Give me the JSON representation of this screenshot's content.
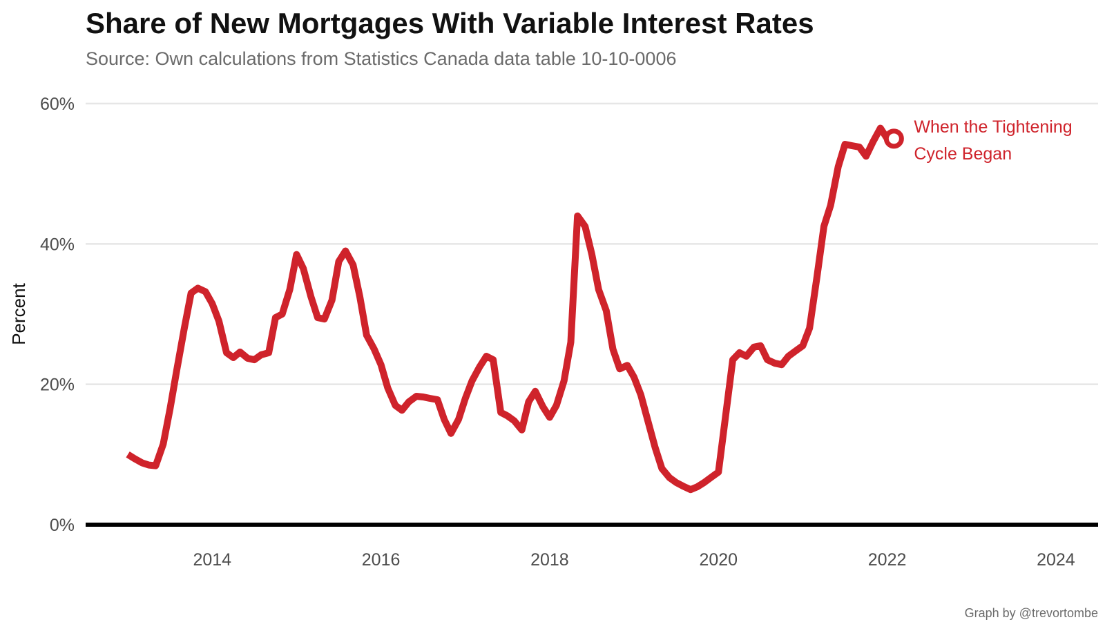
{
  "chart_data": {
    "type": "line",
    "title": "Share of New Mortgages With Variable Interest Rates",
    "subtitle": "Source: Own calculations from Statistics Canada data table 10-10-0006",
    "ylabel": "Percent",
    "xlabel": "",
    "caption": "Graph by @trevortombe",
    "xlim": [
      2012.5,
      2024.5
    ],
    "ylim": [
      0,
      60
    ],
    "x_ticks": [
      2014,
      2016,
      2018,
      2020,
      2022,
      2024
    ],
    "y_ticks": [
      0,
      20,
      40,
      60
    ],
    "y_tick_labels": [
      "0%",
      "20%",
      "40%",
      "60%"
    ],
    "grid": "horizontal",
    "series": [
      {
        "color": "#cf232b",
        "x": [
          2013.0,
          2013.08,
          2013.17,
          2013.25,
          2013.33,
          2013.42,
          2013.5,
          2013.58,
          2013.67,
          2013.75,
          2013.83,
          2013.92,
          2014.0,
          2014.08,
          2014.17,
          2014.25,
          2014.33,
          2014.42,
          2014.5,
          2014.58,
          2014.67,
          2014.75,
          2014.83,
          2014.92,
          2015.0,
          2015.08,
          2015.17,
          2015.25,
          2015.33,
          2015.42,
          2015.5,
          2015.58,
          2015.67,
          2015.75,
          2015.83,
          2015.92,
          2016.0,
          2016.08,
          2016.17,
          2016.25,
          2016.33,
          2016.42,
          2016.5,
          2016.58,
          2016.67,
          2016.75,
          2016.83,
          2016.92,
          2017.0,
          2017.08,
          2017.17,
          2017.25,
          2017.33,
          2017.42,
          2017.5,
          2017.58,
          2017.67,
          2017.75,
          2017.83,
          2017.92,
          2018.0,
          2018.08,
          2018.17,
          2018.25,
          2018.33,
          2018.42,
          2018.5,
          2018.58,
          2018.67,
          2018.75,
          2018.83,
          2018.92,
          2019.0,
          2019.08,
          2019.17,
          2019.25,
          2019.33,
          2019.42,
          2019.5,
          2019.58,
          2019.67,
          2019.75,
          2019.83,
          2019.92,
          2020.0,
          2020.08,
          2020.17,
          2020.25,
          2020.33,
          2020.42,
          2020.5,
          2020.58,
          2020.67,
          2020.75,
          2020.83,
          2020.92,
          2021.0,
          2021.08,
          2021.17,
          2021.25,
          2021.33,
          2021.42,
          2021.5,
          2021.58,
          2021.67,
          2021.75,
          2021.83,
          2021.92,
          2022.0
        ],
        "y": [
          10.0,
          9.4,
          8.8,
          8.5,
          8.4,
          11.5,
          16.5,
          22.0,
          28.0,
          33.0,
          33.7,
          33.2,
          31.5,
          29.0,
          24.5,
          23.8,
          24.6,
          23.7,
          23.5,
          24.2,
          24.5,
          29.5,
          30.0,
          33.5,
          38.5,
          36.5,
          32.5,
          29.5,
          29.3,
          32.0,
          37.5,
          39.0,
          37.0,
          32.5,
          27.0,
          25.0,
          22.8,
          19.5,
          17.0,
          16.3,
          17.5,
          18.3,
          18.2,
          18.0,
          17.8,
          15.0,
          13.0,
          15.0,
          18.0,
          20.5,
          22.5,
          24.0,
          23.5,
          16.0,
          15.5,
          14.8,
          13.5,
          17.5,
          19.0,
          16.8,
          15.3,
          17.0,
          20.5,
          26.0,
          44.0,
          42.5,
          38.5,
          33.5,
          30.5,
          25.0,
          22.2,
          22.7,
          21.0,
          18.5,
          14.5,
          11.0,
          8.0,
          6.7,
          6.0,
          5.5,
          5.0,
          5.4,
          6.0,
          6.8,
          7.5,
          15.0,
          23.5,
          24.5,
          24.0,
          25.3,
          25.5,
          23.5,
          23.0,
          22.8,
          24.0,
          24.8,
          25.5,
          28.0,
          35.5,
          42.5,
          45.5,
          51.0,
          54.2,
          54.0,
          53.8,
          52.5,
          54.5,
          56.5,
          55.0
        ]
      }
    ],
    "annotation": {
      "x": 2022.08,
      "y": 55,
      "lines": [
        "When the Tightening",
        "Cycle Began"
      ],
      "color": "#cf232b"
    }
  }
}
